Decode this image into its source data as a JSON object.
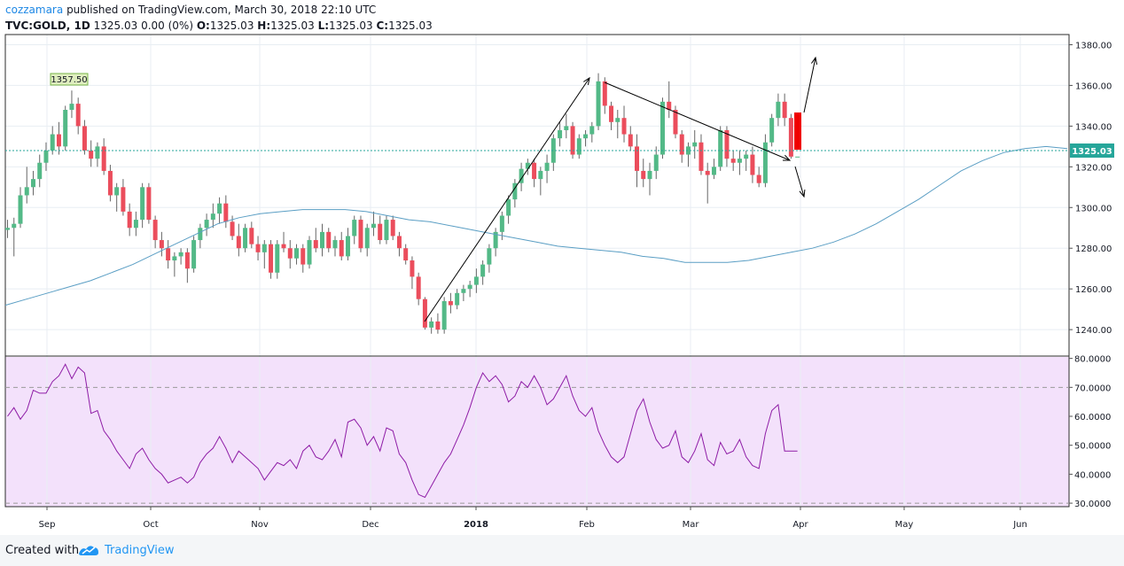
{
  "header": {
    "author": "cozzamara",
    "published": "published on TradingView.com, March 30, 2018 22:10 UTC",
    "symbol": "TVC:GOLD, 1D",
    "quote": "1325.03 0.00 (0%)",
    "ohlc": [
      {
        "k": "O:",
        "v": "1325.03"
      },
      {
        "k": "H:",
        "v": "1325.03"
      },
      {
        "k": "L:",
        "v": "1325.03"
      },
      {
        "k": "C:",
        "v": "1325.03"
      }
    ]
  },
  "footer": {
    "created": "Created with",
    "brand": "TradingView"
  },
  "colors": {
    "up": "#53b987",
    "down": "#eb4d5c",
    "ma": "#5a9ec4",
    "rsi": "#8e1ca6",
    "rsi_band": "#f3e1fb",
    "trend": "#000000",
    "last_price": "#26a69a"
  },
  "chart_data": [
    {
      "type": "candlestick",
      "title": "TVC:GOLD, 1D",
      "x_ticks": [
        "Sep",
        "Oct",
        "Nov",
        "Dec",
        "2018",
        "Feb",
        "Mar",
        "Apr",
        "May",
        "Jun"
      ],
      "y_ticks": [
        "1240.00",
        "1260.00",
        "1280.00",
        "1300.00",
        "1320.00",
        "1340.00",
        "1360.00",
        "1380.00"
      ],
      "ylim": [
        1227,
        1385
      ],
      "grid": true,
      "last_price": "1325.03",
      "high_label": "1357.50",
      "candles": [
        [
          1289,
          1294,
          1285,
          1290
        ],
        [
          1290,
          1295,
          1276,
          1292
        ],
        [
          1292,
          1310,
          1290,
          1306
        ],
        [
          1306,
          1320,
          1302,
          1310
        ],
        [
          1310,
          1318,
          1306,
          1314
        ],
        [
          1314,
          1326,
          1310,
          1322
        ],
        [
          1322,
          1332,
          1318,
          1328
        ],
        [
          1328,
          1340,
          1326,
          1336
        ],
        [
          1336,
          1342,
          1326,
          1330
        ],
        [
          1330,
          1350,
          1328,
          1348
        ],
        [
          1348,
          1357.5,
          1344,
          1351
        ],
        [
          1351,
          1354,
          1336,
          1340
        ],
        [
          1340,
          1343,
          1326,
          1328
        ],
        [
          1328,
          1333,
          1320,
          1324
        ],
        [
          1324,
          1332,
          1320,
          1330
        ],
        [
          1330,
          1334,
          1316,
          1318
        ],
        [
          1318,
          1321,
          1303,
          1306
        ],
        [
          1306,
          1312,
          1298,
          1310
        ],
        [
          1310,
          1314,
          1296,
          1298
        ],
        [
          1298,
          1302,
          1286,
          1290
        ],
        [
          1290,
          1298,
          1286,
          1294
        ],
        [
          1294,
          1312,
          1290,
          1310
        ],
        [
          1310,
          1312,
          1292,
          1294
        ],
        [
          1294,
          1296,
          1280,
          1284
        ],
        [
          1284,
          1288,
          1276,
          1280
        ],
        [
          1280,
          1284,
          1270,
          1274
        ],
        [
          1274,
          1278,
          1266,
          1276
        ],
        [
          1276,
          1280,
          1272,
          1278
        ],
        [
          1278,
          1280,
          1263,
          1270
        ],
        [
          1270,
          1286,
          1268,
          1284
        ],
        [
          1284,
          1292,
          1280,
          1290
        ],
        [
          1290,
          1297,
          1286,
          1294
        ],
        [
          1294,
          1302,
          1290,
          1297
        ],
        [
          1297,
          1305,
          1292,
          1302
        ],
        [
          1302,
          1306,
          1290,
          1293
        ],
        [
          1293,
          1296,
          1284,
          1286
        ],
        [
          1286,
          1292,
          1276,
          1280
        ],
        [
          1280,
          1292,
          1278,
          1290
        ],
        [
          1290,
          1293,
          1280,
          1282
        ],
        [
          1282,
          1286,
          1274,
          1278
        ],
        [
          1278,
          1284,
          1270,
          1282
        ],
        [
          1282,
          1284,
          1265,
          1268
        ],
        [
          1268,
          1284,
          1265,
          1282
        ],
        [
          1282,
          1288,
          1278,
          1280
        ],
        [
          1280,
          1284,
          1270,
          1275
        ],
        [
          1275,
          1282,
          1272,
          1280
        ],
        [
          1280,
          1282,
          1268,
          1272
        ],
        [
          1272,
          1286,
          1270,
          1284
        ],
        [
          1284,
          1290,
          1278,
          1280
        ],
        [
          1280,
          1292,
          1276,
          1288
        ],
        [
          1288,
          1290,
          1278,
          1280
        ],
        [
          1280,
          1286,
          1276,
          1284
        ],
        [
          1284,
          1288,
          1274,
          1276
        ],
        [
          1276,
          1290,
          1274,
          1286
        ],
        [
          1286,
          1296,
          1282,
          1294
        ],
        [
          1294,
          1296,
          1278,
          1280
        ],
        [
          1280,
          1292,
          1276,
          1290
        ],
        [
          1290,
          1298,
          1286,
          1292
        ],
        [
          1292,
          1296,
          1282,
          1284
        ],
        [
          1284,
          1296,
          1282,
          1294
        ],
        [
          1294,
          1296,
          1284,
          1286
        ],
        [
          1286,
          1288,
          1276,
          1280
        ],
        [
          1280,
          1282,
          1272,
          1274
        ],
        [
          1274,
          1276,
          1260,
          1266
        ],
        [
          1266,
          1268,
          1252,
          1255
        ],
        [
          1255,
          1256,
          1240,
          1241
        ],
        [
          1241,
          1246,
          1238,
          1244
        ],
        [
          1244,
          1248,
          1238,
          1240
        ],
        [
          1240,
          1256,
          1238,
          1254
        ],
        [
          1254,
          1258,
          1248,
          1252
        ],
        [
          1252,
          1260,
          1250,
          1258
        ],
        [
          1258,
          1262,
          1254,
          1260
        ],
        [
          1260,
          1264,
          1256,
          1262
        ],
        [
          1262,
          1270,
          1258,
          1266
        ],
        [
          1266,
          1274,
          1262,
          1272
        ],
        [
          1272,
          1282,
          1268,
          1280
        ],
        [
          1280,
          1290,
          1276,
          1288
        ],
        [
          1288,
          1298,
          1284,
          1296
        ],
        [
          1296,
          1306,
          1292,
          1304
        ],
        [
          1304,
          1314,
          1300,
          1312
        ],
        [
          1312,
          1322,
          1308,
          1319
        ],
        [
          1319,
          1324,
          1316,
          1322
        ],
        [
          1322,
          1324,
          1310,
          1314
        ],
        [
          1314,
          1320,
          1306,
          1318
        ],
        [
          1318,
          1326,
          1312,
          1322
        ],
        [
          1322,
          1336,
          1318,
          1334
        ],
        [
          1334,
          1342,
          1330,
          1338
        ],
        [
          1338,
          1346,
          1334,
          1340
        ],
        [
          1340,
          1342,
          1324,
          1326
        ],
        [
          1326,
          1336,
          1324,
          1334
        ],
        [
          1334,
          1338,
          1330,
          1336
        ],
        [
          1336,
          1342,
          1332,
          1340
        ],
        [
          1340,
          1366,
          1338,
          1362
        ],
        [
          1362,
          1364,
          1346,
          1350
        ],
        [
          1350,
          1352,
          1338,
          1342
        ],
        [
          1342,
          1348,
          1334,
          1344
        ],
        [
          1344,
          1350,
          1332,
          1336
        ],
        [
          1336,
          1340,
          1328,
          1330
        ],
        [
          1330,
          1336,
          1310,
          1318
        ],
        [
          1318,
          1324,
          1310,
          1314
        ],
        [
          1314,
          1322,
          1306,
          1318
        ],
        [
          1318,
          1330,
          1314,
          1326
        ],
        [
          1326,
          1354,
          1324,
          1352
        ],
        [
          1352,
          1362,
          1344,
          1348
        ],
        [
          1348,
          1350,
          1334,
          1336
        ],
        [
          1336,
          1338,
          1322,
          1326
        ],
        [
          1326,
          1332,
          1320,
          1330
        ],
        [
          1330,
          1338,
          1324,
          1332
        ],
        [
          1332,
          1336,
          1316,
          1318
        ],
        [
          1318,
          1322,
          1302,
          1316
        ],
        [
          1316,
          1324,
          1314,
          1320
        ],
        [
          1320,
          1340,
          1318,
          1338
        ],
        [
          1338,
          1340,
          1320,
          1324
        ],
        [
          1324,
          1328,
          1318,
          1322
        ],
        [
          1322,
          1328,
          1316,
          1324
        ],
        [
          1324,
          1328,
          1318,
          1326
        ],
        [
          1326,
          1330,
          1312,
          1316
        ],
        [
          1316,
          1320,
          1310,
          1312
        ],
        [
          1312,
          1336,
          1310,
          1332
        ],
        [
          1332,
          1346,
          1330,
          1344
        ],
        [
          1344,
          1356,
          1340,
          1352
        ],
        [
          1352,
          1356,
          1340,
          1344
        ],
        [
          1344,
          1346,
          1324,
          1325
        ],
        [
          1325.03,
          1325.03,
          1325.03,
          1325.03
        ]
      ],
      "series": [
        {
          "name": "",
          "values": [
            1252,
            1255,
            1258,
            1261,
            1264,
            1268,
            1272,
            1277,
            1282,
            1287,
            1292,
            1295,
            1297,
            1298,
            1299,
            1299,
            1299,
            1298,
            1296,
            1294,
            1293,
            1291,
            1289,
            1287,
            1285,
            1283,
            1281,
            1280,
            1279,
            1278,
            1276,
            1275,
            1273,
            1273,
            1273,
            1274,
            1276,
            1278,
            1280,
            1283,
            1287,
            1292,
            1298,
            1304,
            1311,
            1318,
            1323,
            1327,
            1329,
            1330,
            1329
          ]
        }
      ]
    },
    {
      "type": "line",
      "title": "",
      "y_ticks": [
        "30.0000",
        "40.0000",
        "50.0000",
        "60.0000",
        "70.0000",
        "80.0000"
      ],
      "ylim": [
        28.8,
        80.5
      ],
      "bands": [
        30,
        70
      ],
      "series": [
        {
          "name": "",
          "values": [
            60,
            63,
            59,
            62,
            69,
            68,
            68,
            72,
            74,
            78,
            73,
            77,
            75,
            61,
            62,
            55,
            52,
            48,
            45,
            42,
            47,
            49,
            45,
            42,
            40,
            37,
            38,
            39,
            37,
            39,
            44,
            47,
            49,
            53,
            49,
            44,
            48,
            46,
            44,
            42,
            38,
            41,
            44,
            43,
            45,
            42,
            48,
            50,
            46,
            45,
            48,
            52,
            46,
            58,
            59,
            56,
            50,
            53,
            48,
            56,
            55,
            47,
            44,
            38,
            33,
            32,
            36,
            40,
            44,
            47,
            52,
            57,
            63,
            70,
            75,
            72,
            74,
            71,
            65,
            67,
            72,
            70,
            74,
            70,
            64,
            66,
            70,
            74,
            67,
            62,
            60,
            63,
            55,
            50,
            46,
            44,
            46,
            54,
            62,
            66,
            58,
            52,
            49,
            50,
            55,
            46,
            44,
            48,
            54,
            45,
            43,
            51,
            47,
            48,
            52,
            46,
            43,
            42,
            54,
            62,
            64,
            48,
            48,
            48
          ]
        }
      ]
    }
  ]
}
